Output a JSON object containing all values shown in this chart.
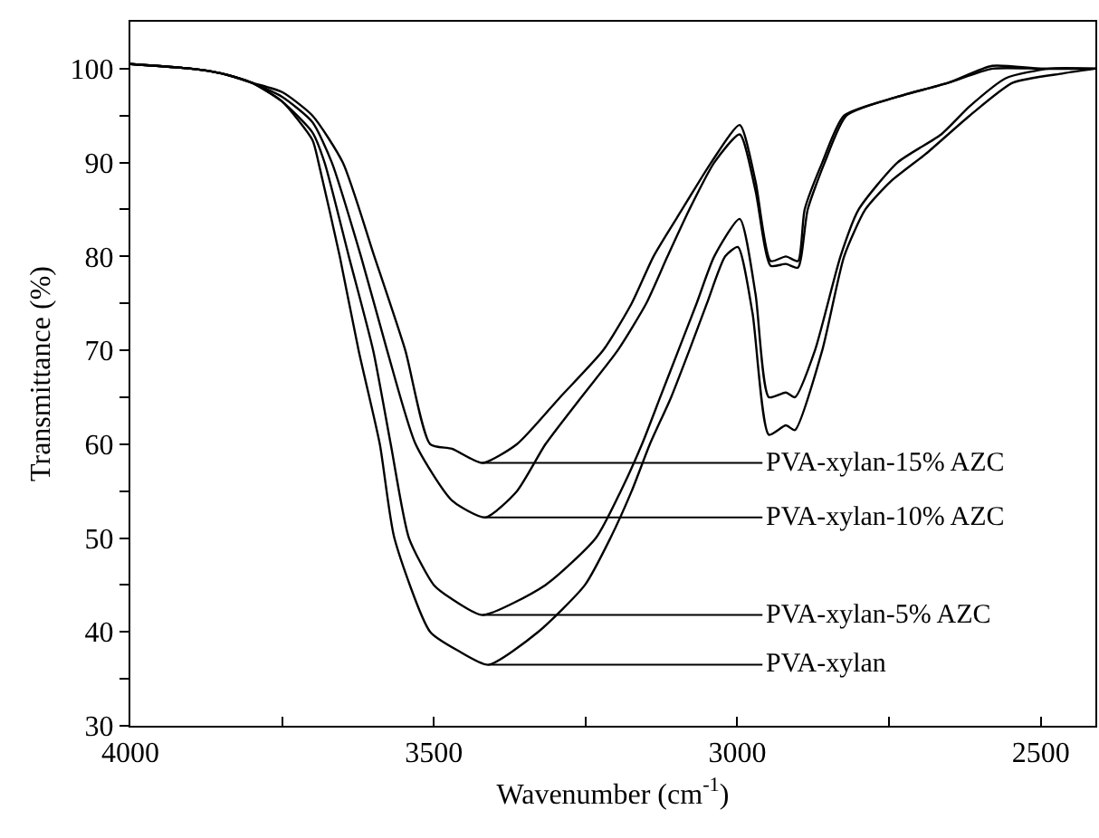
{
  "chart_data": {
    "type": "line",
    "xlabel": "Wavenumber (cm$^{-1}$)",
    "ylabel": "Transmittance (%)",
    "xlim": [
      4000,
      2410
    ],
    "ylim": [
      30,
      105
    ],
    "xticks": [
      4000,
      {
        "value": 3750,
        "label": null
      },
      3500,
      {
        "value": 3250,
        "label": null
      },
      3000,
      {
        "value": 2750,
        "label": null
      },
      2500
    ],
    "yticks": [
      30,
      {
        "value": 35,
        "label": null
      },
      40,
      {
        "value": 45,
        "label": null
      },
      50,
      {
        "value": 55,
        "label": null
      },
      60,
      {
        "value": 65,
        "label": null
      },
      70,
      {
        "value": 75,
        "label": null
      },
      80,
      {
        "value": 85,
        "label": null
      },
      90,
      {
        "value": 95,
        "label": null
      },
      100
    ],
    "annotations": [
      {
        "text": "PVA-xylan-15% AZC",
        "x": 3420,
        "y": 58
      },
      {
        "text": "PVA-xylan-10% AZC",
        "x": 3415,
        "y": 52.2
      },
      {
        "text": "PVA-xylan-5% AZC",
        "x": 3420,
        "y": 41.8
      },
      {
        "text": "PVA-xylan",
        "x": 3410,
        "y": 36.5
      }
    ],
    "marker": "none",
    "line_style": "solid",
    "series": [
      {
        "color": "#000000",
        "x": [
          4000,
          3900,
          3850,
          3800,
          3750,
          3700,
          3650,
          3598,
          3547,
          3506,
          3470,
          3420,
          3363,
          3292,
          3221,
          3174,
          3138,
          3091,
          3043,
          2996,
          2970,
          2945,
          2920,
          2900,
          2889,
          2860,
          2824,
          2736,
          2652,
          2580,
          2500,
          2410
        ],
        "values": [
          100.5,
          100,
          99.5,
          98.5,
          97.5,
          95,
          90,
          80,
          70,
          60,
          59.5,
          58,
          60,
          65,
          70,
          75,
          80,
          85,
          90,
          94,
          88,
          79.5,
          80,
          79.5,
          85,
          90,
          95,
          97,
          98.5,
          100.3,
          100,
          100
        ]
      },
      {
        "color": "#000000",
        "x": [
          4000,
          3900,
          3850,
          3800,
          3750,
          3700,
          3668,
          3620,
          3577,
          3530,
          3470,
          3415,
          3363,
          3316,
          3257,
          3197,
          3150,
          3115,
          3079,
          3038,
          2996,
          2970,
          2945,
          2920,
          2900,
          2884,
          2856,
          2820,
          2736,
          2652,
          2580,
          2500,
          2410
        ],
        "values": [
          100.5,
          100,
          99.5,
          98.5,
          97,
          94.3,
          90,
          80,
          70,
          60,
          54,
          52.2,
          55,
          60,
          65,
          70,
          75,
          80,
          85,
          90,
          93,
          87,
          79,
          79.2,
          78.8,
          85,
          90,
          95,
          97,
          98.5,
          100,
          100,
          100
        ]
      },
      {
        "color": "#000000",
        "x": [
          4000,
          3900,
          3850,
          3800,
          3750,
          3700,
          3680,
          3640,
          3600,
          3571,
          3541,
          3500,
          3470,
          3420,
          3316,
          3233,
          3192,
          3157,
          3127,
          3097,
          3067,
          3038,
          2996,
          2970,
          2948,
          2920,
          2905,
          2872,
          2830,
          2800,
          2736,
          2664,
          2617,
          2557,
          2486,
          2410
        ],
        "values": [
          100.5,
          100,
          99.5,
          98.5,
          96.5,
          93.2,
          90,
          80,
          70,
          60,
          50,
          45,
          43.5,
          41.8,
          45,
          50,
          55,
          60,
          65,
          70,
          75,
          80,
          84,
          76,
          65,
          65.5,
          65,
          70,
          80,
          85,
          90,
          93,
          96,
          99,
          100,
          100
        ]
      },
      {
        "color": "#000000",
        "x": [
          4000,
          3900,
          3850,
          3800,
          3750,
          3700,
          3690,
          3655,
          3624,
          3589,
          3565,
          3506,
          3460,
          3410,
          3328,
          3251,
          3209,
          3174,
          3144,
          3109,
          3079,
          3050,
          3020,
          2999,
          2975,
          2948,
          2920,
          2905,
          2860,
          2824,
          2789,
          2747,
          2688,
          2617,
          2546,
          2463,
          2410
        ],
        "values": [
          100.5,
          100,
          99.5,
          98.5,
          96.5,
          92.4,
          90,
          80,
          70,
          60,
          50,
          40,
          38,
          36.5,
          40,
          45,
          50,
          55,
          60,
          65,
          70,
          75,
          80,
          81,
          74,
          61,
          62,
          61.5,
          70,
          80,
          85,
          88,
          91,
          95,
          98.5,
          99.5,
          100
        ]
      }
    ]
  }
}
